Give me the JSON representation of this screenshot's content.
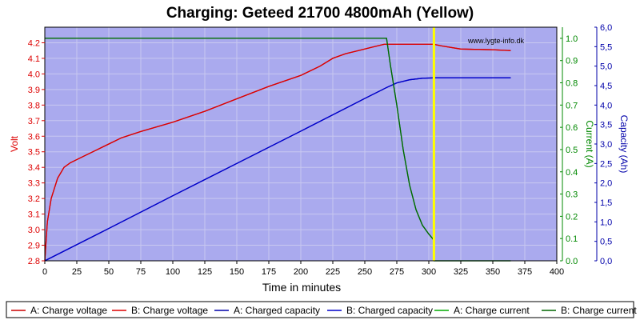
{
  "chart_data": {
    "type": "line",
    "title": "Charging: Geteed 21700 4800mAh (Yellow)",
    "watermark": "www.lygte-info.dk",
    "xlabel": "Time in minutes",
    "ylabel_left": "Volt",
    "ylabel_right1": "Current (A)",
    "ylabel_right2": "Capacity (Ah)",
    "xlim": [
      0,
      400
    ],
    "ylim_left": [
      2.8,
      4.3
    ],
    "ylim_right1": [
      0,
      1.05
    ],
    "ylim_right2": [
      0,
      6.0
    ],
    "x_ticks": [
      "0",
      "25",
      "50",
      "75",
      "100",
      "125",
      "150",
      "175",
      "200",
      "225",
      "250",
      "275",
      "300",
      "325",
      "350",
      "375",
      "400"
    ],
    "y_left_ticks": [
      "2.8",
      "2.9",
      "3.0",
      "3.1",
      "3.2",
      "3.3",
      "3.4",
      "3.5",
      "3.6",
      "3.7",
      "3.8",
      "3.9",
      "4.0",
      "4.1",
      "4.2"
    ],
    "y_right1_ticks": [
      "0.0",
      "0.1",
      "0.2",
      "0.3",
      "0.4",
      "0.5",
      "0.6",
      "0.7",
      "0.8",
      "0.9",
      "1.0"
    ],
    "y_right2_ticks": [
      "0,0",
      "0,5",
      "1,0",
      "1,5",
      "2,0",
      "2,5",
      "3,0",
      "3,5",
      "4,0",
      "4,5",
      "5,0",
      "5,5",
      "6,0"
    ],
    "grid": true,
    "marker_line_x": 304,
    "colors": {
      "plot_bg": "#aaaaee",
      "grid": "#c8c8f0",
      "voltage": "#dd0000",
      "capacity": "#0000cc",
      "current": "#006600",
      "current_a": "#00aa00",
      "marker": "#ffff00",
      "left_axis": "#dd0000",
      "right1_axis": "#008800",
      "right2_axis": "#0000aa"
    },
    "series": [
      {
        "name": "A: Charge voltage",
        "axis": "left",
        "color": "#cc0000",
        "x": [
          0,
          2,
          5,
          10,
          15,
          20,
          30,
          40,
          50,
          60,
          75,
          100,
          125,
          150,
          175,
          200,
          215,
          225,
          235,
          245,
          255,
          265,
          270,
          290,
          300,
          304,
          310,
          325,
          350,
          364
        ],
        "y": [
          2.8,
          3.05,
          3.2,
          3.33,
          3.4,
          3.43,
          3.47,
          3.51,
          3.55,
          3.59,
          3.63,
          3.69,
          3.76,
          3.84,
          3.92,
          3.99,
          4.05,
          4.1,
          4.13,
          4.15,
          4.17,
          4.19,
          4.19,
          4.19,
          4.19,
          4.19,
          4.18,
          4.16,
          4.155,
          4.15
        ]
      },
      {
        "name": "B: Charge voltage",
        "axis": "left",
        "color": "#dd0000",
        "x": [
          0,
          2,
          5,
          10,
          15,
          20,
          30,
          40,
          50,
          60,
          75,
          100,
          125,
          150,
          175,
          200,
          215,
          225,
          235,
          245,
          255,
          265,
          270,
          290,
          300,
          304,
          310,
          325,
          350,
          364
        ],
        "y": [
          2.8,
          3.05,
          3.2,
          3.33,
          3.4,
          3.43,
          3.47,
          3.51,
          3.55,
          3.59,
          3.63,
          3.69,
          3.76,
          3.84,
          3.92,
          3.99,
          4.05,
          4.1,
          4.13,
          4.15,
          4.17,
          4.19,
          4.19,
          4.19,
          4.19,
          4.19,
          4.18,
          4.16,
          4.155,
          4.15
        ]
      },
      {
        "name": "A: Charged capacity",
        "axis": "right2",
        "color": "#0000aa",
        "x": [
          0,
          50,
          100,
          150,
          200,
          250,
          267,
          275,
          285,
          295,
          304,
          320,
          364
        ],
        "y": [
          0,
          0.83,
          1.67,
          2.5,
          3.33,
          4.17,
          4.45,
          4.57,
          4.65,
          4.69,
          4.7,
          4.7,
          4.7
        ]
      },
      {
        "name": "B: Charged capacity",
        "axis": "right2",
        "color": "#0000cc",
        "x": [
          0,
          50,
          100,
          150,
          200,
          250,
          267,
          275,
          285,
          295,
          304,
          320,
          364
        ],
        "y": [
          0,
          0.83,
          1.67,
          2.5,
          3.33,
          4.17,
          4.45,
          4.57,
          4.65,
          4.69,
          4.7,
          4.7,
          4.7
        ]
      },
      {
        "name": "A: Charge current",
        "axis": "right1",
        "color": "#00aa00",
        "x": [
          0,
          267,
          268,
          270,
          275,
          280,
          285,
          290,
          295,
          300,
          303,
          304,
          304.2,
          364
        ],
        "y": [
          1.0,
          1.0,
          0.96,
          0.88,
          0.7,
          0.5,
          0.34,
          0.23,
          0.16,
          0.12,
          0.1,
          0.09,
          0.0,
          0.0
        ]
      },
      {
        "name": "B: Charge current",
        "axis": "right1",
        "color": "#006600",
        "x": [
          0,
          267,
          268,
          270,
          275,
          280,
          285,
          290,
          295,
          300,
          303,
          304,
          304.2,
          364
        ],
        "y": [
          1.0,
          1.0,
          0.96,
          0.88,
          0.7,
          0.5,
          0.34,
          0.23,
          0.16,
          0.12,
          0.1,
          0.09,
          0.0,
          0.0
        ]
      }
    ]
  }
}
